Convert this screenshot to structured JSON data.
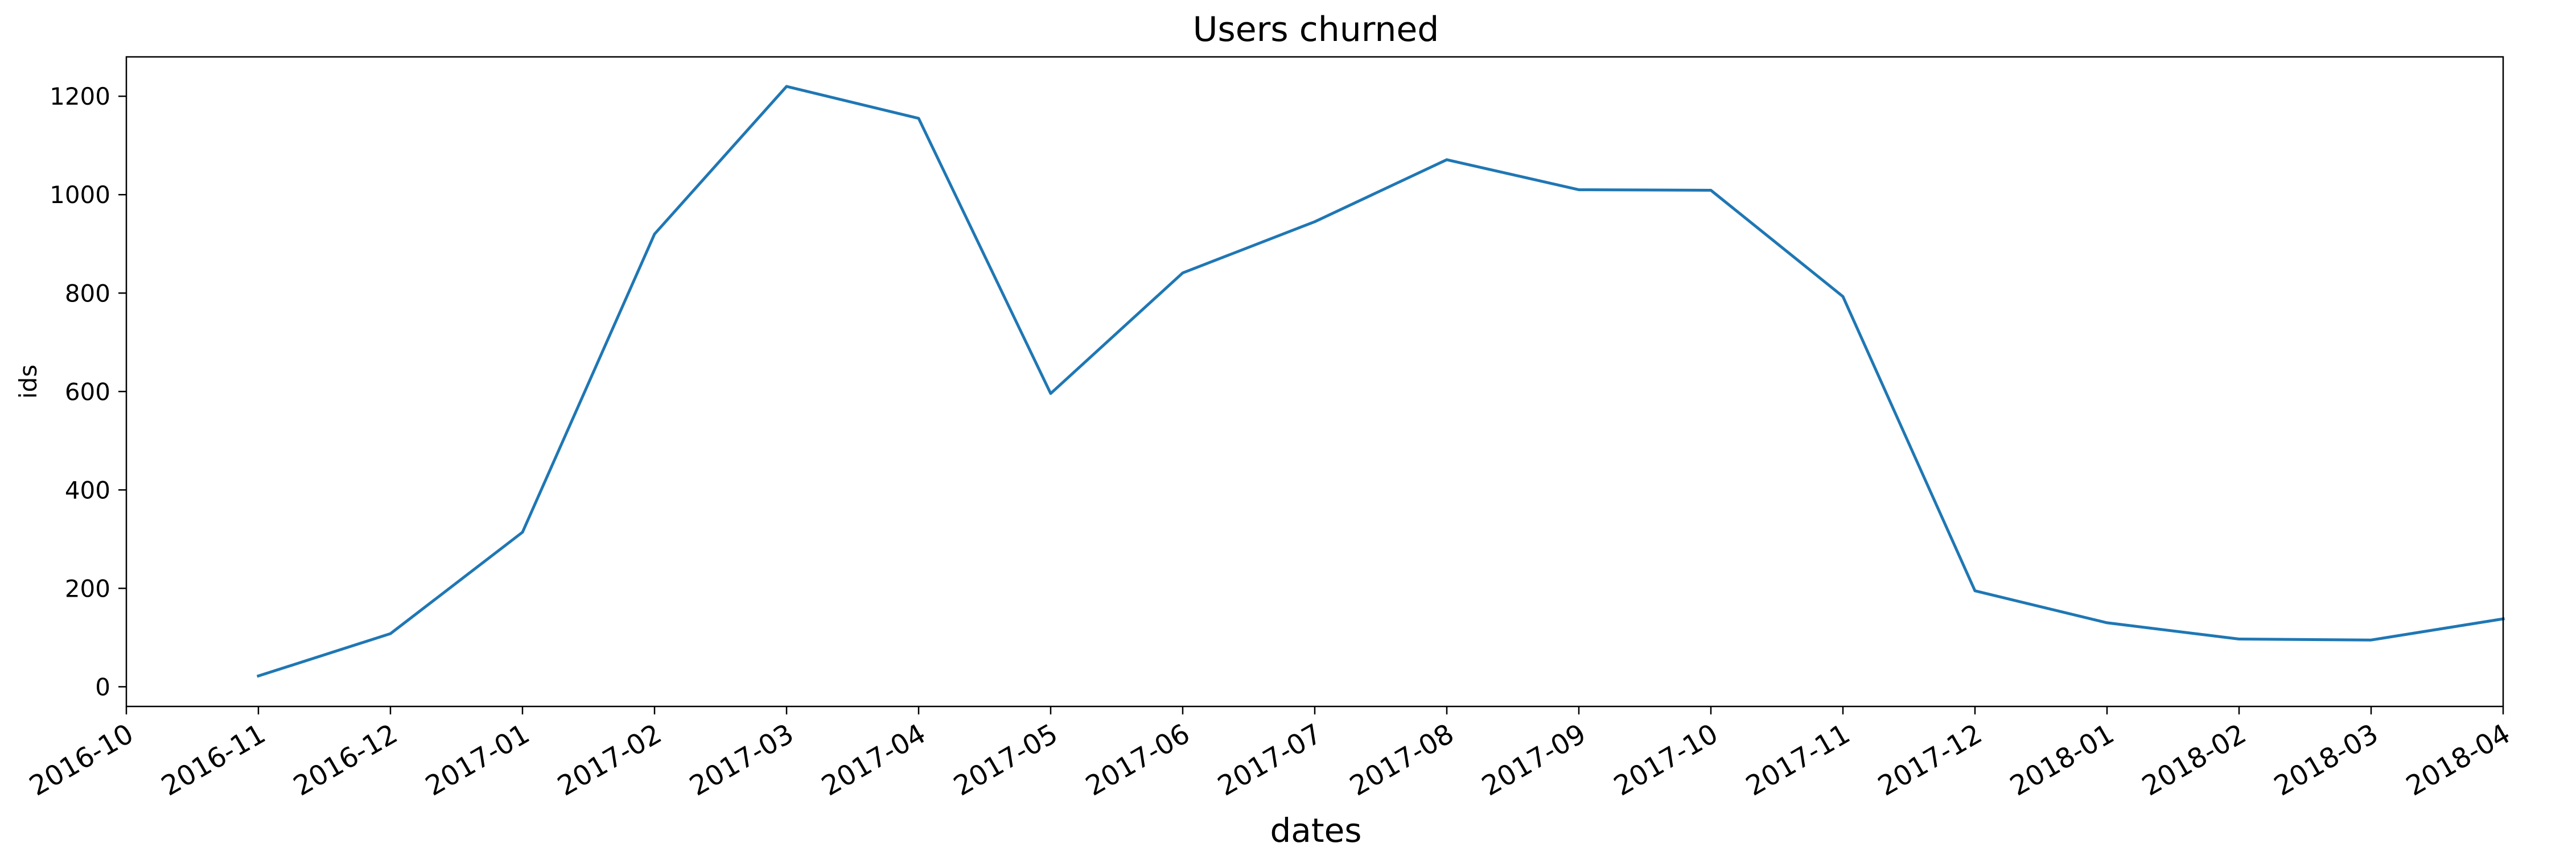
{
  "chart_data": {
    "type": "line",
    "title": "Users churned",
    "xlabel": "dates",
    "ylabel": "ids",
    "x_ticks": [
      "2016-10",
      "2016-11",
      "2016-12",
      "2017-01",
      "2017-02",
      "2017-03",
      "2017-04",
      "2017-05",
      "2017-06",
      "2017-07",
      "2017-08",
      "2017-09",
      "2017-10",
      "2017-11",
      "2017-12",
      "2018-01",
      "2018-02",
      "2018-03",
      "2018-04"
    ],
    "y_ticks": [
      0,
      200,
      400,
      600,
      800,
      1000,
      1200
    ],
    "xlim": [
      "2016-10",
      "2018-04"
    ],
    "ylim": [
      -40,
      1280
    ],
    "grid": false,
    "series": [
      {
        "color": "#1f77b4",
        "x": [
          "2016-11",
          "2016-12",
          "2017-01",
          "2017-02",
          "2017-03",
          "2017-04",
          "2017-05",
          "2017-06",
          "2017-07",
          "2017-08",
          "2017-09",
          "2017-10",
          "2017-11",
          "2017-12",
          "2018-01",
          "2018-02",
          "2018-03",
          "2018-04"
        ],
        "values": [
          22,
          108,
          314,
          920,
          1220,
          1155,
          596,
          841,
          945,
          1071,
          1010,
          1009,
          793,
          195,
          130,
          97,
          95,
          138
        ]
      }
    ]
  }
}
